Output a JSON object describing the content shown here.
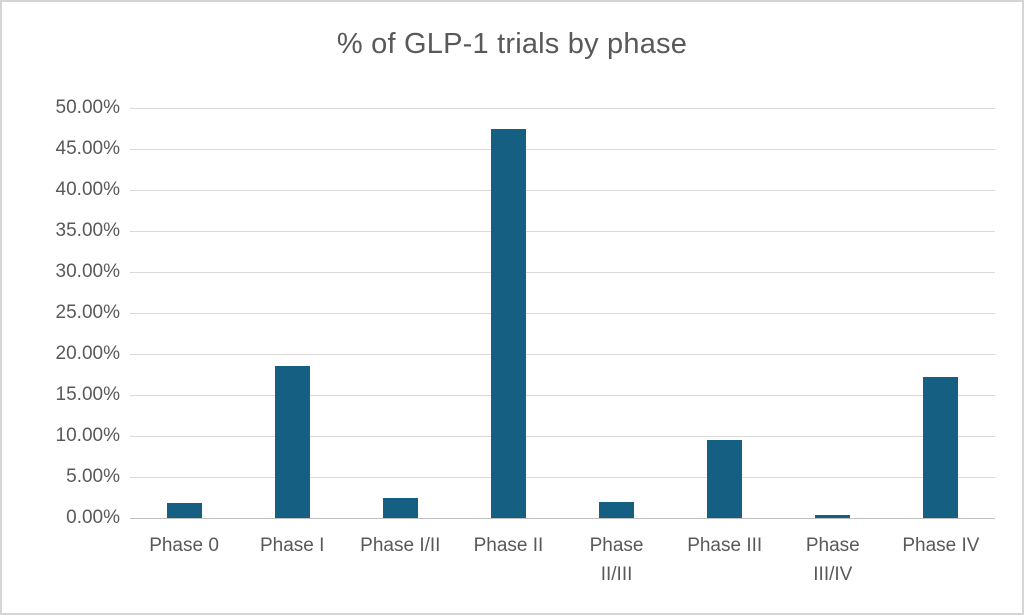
{
  "frame": {
    "background_color": "#ffffff",
    "border_color": "#d5d5d5"
  },
  "chart_data": {
    "type": "bar",
    "title": "% of GLP-1 trials by phase",
    "categories": [
      "Phase 0",
      "Phase I",
      "Phase I/II",
      "Phase II",
      "Phase II/III",
      "Phase III",
      "Phase III/IV",
      "Phase IV"
    ],
    "category_label_lines": [
      [
        "Phase 0"
      ],
      [
        "Phase I"
      ],
      [
        "Phase I/II"
      ],
      [
        "Phase II"
      ],
      [
        "Phase",
        "II/III"
      ],
      [
        "Phase III"
      ],
      [
        "Phase",
        "III/IV"
      ],
      [
        "Phase IV"
      ]
    ],
    "values": [
      1.8,
      18.5,
      2.5,
      47.5,
      2.0,
      9.5,
      0.35,
      17.2
    ],
    "value_unit": "percent",
    "xlabel": "",
    "ylabel": "",
    "ylim": [
      0,
      50
    ],
    "ytick_step": 5,
    "ytick_labels_bottom_to_top": [
      "0.00%",
      "5.00%",
      "10.00%",
      "15.00%",
      "20.00%",
      "25.00%",
      "30.00%",
      "35.00%",
      "40.00%",
      "45.00%",
      "50.00%"
    ],
    "grid": true,
    "legend": "none",
    "colors": {
      "bar": "#156082",
      "gridline": "#d9d9d9",
      "axis_line": "#bfbfbf",
      "text": "#595959"
    }
  }
}
